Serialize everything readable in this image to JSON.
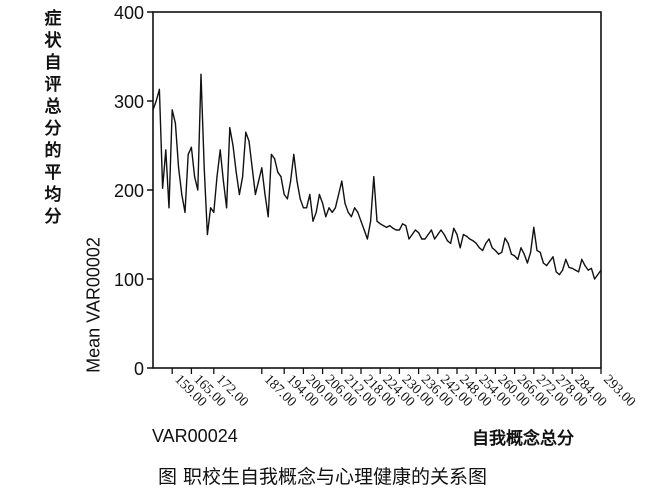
{
  "chart_data": {
    "type": "line",
    "title": "",
    "ylabel_cn": "症状自评总分的平均分",
    "ylabel": "Mean VAR00002",
    "xlabel": "VAR00024",
    "xlabel_cn": "自我概念总分",
    "caption": "图   职校生自我概念与心理健康的关系图",
    "ylim": [
      0,
      400
    ],
    "xlim": [
      153,
      293
    ],
    "y_ticks": [
      0,
      100,
      200,
      300,
      400
    ],
    "x_tick_values": [
      159,
      165,
      172,
      187,
      194,
      200,
      206,
      212,
      218,
      224,
      230,
      236,
      242,
      248,
      254,
      260,
      266,
      272,
      278,
      284,
      293
    ],
    "x_tick_labels": [
      "159.00",
      "165.00",
      "172.00",
      "187.00",
      "194.00",
      "200.00",
      "206.00",
      "212.00",
      "218.00",
      "224.00",
      "230.00",
      "236.00",
      "242.00",
      "248.00",
      "254.00",
      "260.00",
      "266.00",
      "272.00",
      "278.00",
      "284.00",
      "293.00"
    ],
    "grid": false,
    "series": [
      {
        "x": [
          153,
          154,
          155,
          156,
          157,
          158,
          159,
          160,
          161,
          162,
          163,
          164,
          165,
          166,
          167,
          168,
          169,
          170,
          171,
          172,
          173,
          174,
          175,
          176,
          177,
          178,
          179,
          180,
          181,
          182,
          183,
          184,
          185,
          186,
          187,
          188,
          189,
          190,
          191,
          192,
          193,
          194,
          195,
          196,
          197,
          198,
          199,
          200,
          201,
          202,
          203,
          204,
          205,
          206,
          207,
          208,
          209,
          210,
          211,
          212,
          213,
          214,
          215,
          216,
          217,
          218,
          219,
          220,
          221,
          222,
          223,
          224,
          225,
          226,
          227,
          228,
          229,
          230,
          231,
          232,
          233,
          234,
          235,
          236,
          237,
          238,
          239,
          240,
          241,
          242,
          243,
          244,
          245,
          246,
          247,
          248,
          249,
          250,
          251,
          252,
          253,
          254,
          255,
          256,
          257,
          258,
          259,
          260,
          261,
          262,
          263,
          264,
          265,
          266,
          267,
          268,
          269,
          270,
          271,
          272,
          273,
          274,
          275,
          276,
          277,
          278,
          279,
          280,
          281,
          282,
          283,
          284,
          285,
          286,
          287,
          288,
          289,
          290,
          291,
          292,
          293
        ],
        "y": [
          290,
          300,
          313,
          202,
          245,
          180,
          290,
          275,
          225,
          195,
          175,
          240,
          248,
          215,
          200,
          330,
          225,
          150,
          180,
          175,
          215,
          245,
          210,
          180,
          270,
          250,
          220,
          195,
          215,
          265,
          255,
          225,
          195,
          210,
          225,
          195,
          170,
          240,
          235,
          220,
          215,
          195,
          190,
          210,
          240,
          210,
          190,
          180,
          180,
          195,
          165,
          175,
          195,
          185,
          170,
          180,
          175,
          180,
          195,
          210,
          185,
          175,
          170,
          180,
          175,
          165,
          155,
          145,
          165,
          215,
          165,
          162,
          160,
          158,
          160,
          157,
          155,
          155,
          162,
          160,
          145,
          150,
          155,
          152,
          145,
          145,
          150,
          155,
          145,
          150,
          155,
          150,
          143,
          140,
          157,
          150,
          135,
          150,
          148,
          145,
          143,
          140,
          135,
          132,
          140,
          145,
          135,
          132,
          128,
          130,
          146,
          140,
          128,
          126,
          122,
          135,
          128,
          118,
          130,
          158,
          132,
          130,
          118,
          115,
          120,
          125,
          108,
          105,
          110,
          122,
          113,
          112,
          110,
          108,
          122,
          115,
          110,
          112,
          100,
          105,
          110
        ]
      }
    ]
  }
}
